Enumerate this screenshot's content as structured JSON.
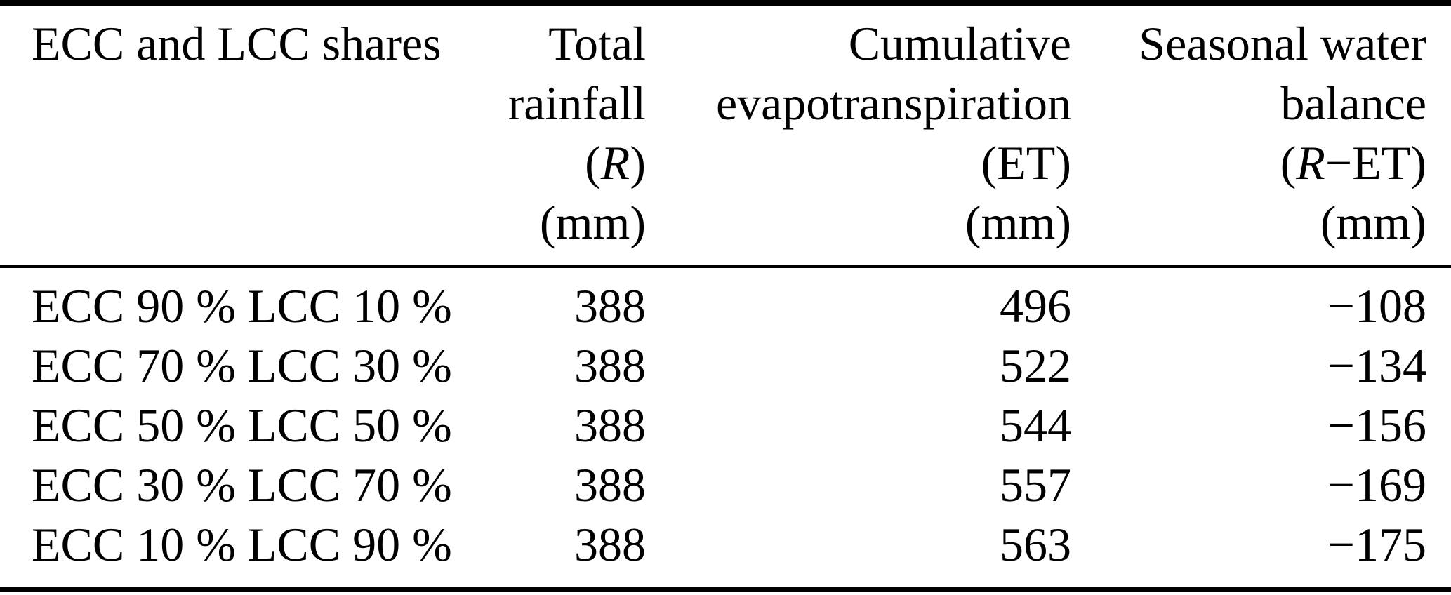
{
  "page": {
    "background_color": "#ffffff",
    "text_color": "#000000",
    "rule_color": "#000000"
  },
  "table": {
    "name": "ecc-lcc-seasonal-water-balance-table",
    "columns": [
      {
        "id": "shares",
        "align": "left",
        "header_lines": [
          "ECC and LCC shares"
        ]
      },
      {
        "id": "total-rainfall",
        "align": "right",
        "header_lines": [
          "Total",
          "rainfall",
          "(R)",
          "(mm)"
        ]
      },
      {
        "id": "cumulative-et",
        "align": "right",
        "header_lines": [
          "Cumulative",
          "evapotranspiration",
          "(ET)",
          "(mm)"
        ]
      },
      {
        "id": "seasonal-balance",
        "align": "right",
        "header_lines": [
          "Seasonal water",
          "balance",
          "(R−ET)",
          "(mm)"
        ]
      }
    ],
    "rows": [
      [
        "ECC 90 % LCC 10 %",
        "388",
        "496",
        "−108"
      ],
      [
        "ECC 70 % LCC 30 %",
        "388",
        "522",
        "−134"
      ],
      [
        "ECC 50 % LCC 50 %",
        "388",
        "544",
        "−156"
      ],
      [
        "ECC 30 % LCC 70 %",
        "388",
        "557",
        "−169"
      ],
      [
        "ECC 10 % LCC 90 %",
        "388",
        "563",
        "−175"
      ]
    ]
  }
}
